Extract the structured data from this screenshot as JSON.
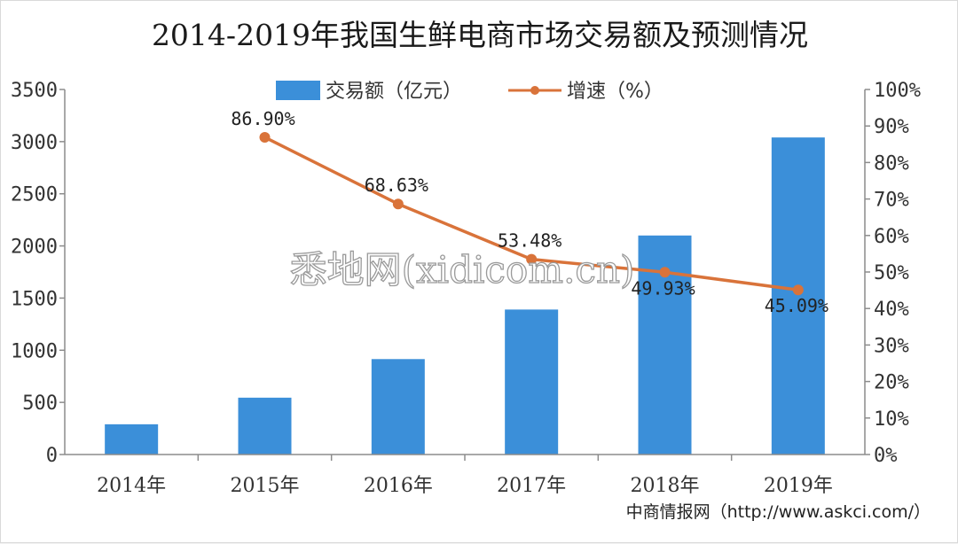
{
  "chart_data": {
    "type": "bar",
    "title": "2014-2019年我国生鲜电商市场交易额及预测情况",
    "categories": [
      "2014年",
      "2015年",
      "2016年",
      "2017年",
      "2018年",
      "2019年"
    ],
    "series": [
      {
        "name": "交易额（亿元）",
        "type": "bar",
        "axis": "left",
        "color": "#3b8fd9",
        "values": [
          290,
          545,
          915,
          1390,
          2100,
          3040
        ]
      },
      {
        "name": "增速（%）",
        "type": "line",
        "axis": "right",
        "color": "#d9733a",
        "values": [
          null,
          86.9,
          68.63,
          53.48,
          49.93,
          45.09
        ],
        "labels": [
          "",
          "86.90%",
          "68.63%",
          "53.48%",
          "49.93%",
          "45.09%"
        ]
      }
    ],
    "y_left": {
      "ticks": [
        "0",
        "500",
        "1000",
        "1500",
        "2000",
        "2500",
        "3000",
        "3500"
      ],
      "ylim": [
        0,
        3500
      ]
    },
    "y_right": {
      "ticks": [
        "0%",
        "10%",
        "20%",
        "30%",
        "40%",
        "50%",
        "60%",
        "70%",
        "80%",
        "90%",
        "100%"
      ],
      "ylim": [
        0,
        100
      ]
    },
    "grid": false,
    "legend": "top-center"
  },
  "source": "中商情报网（http://www.askci.com/）",
  "watermark": "悉地网(xidicom.cn)"
}
